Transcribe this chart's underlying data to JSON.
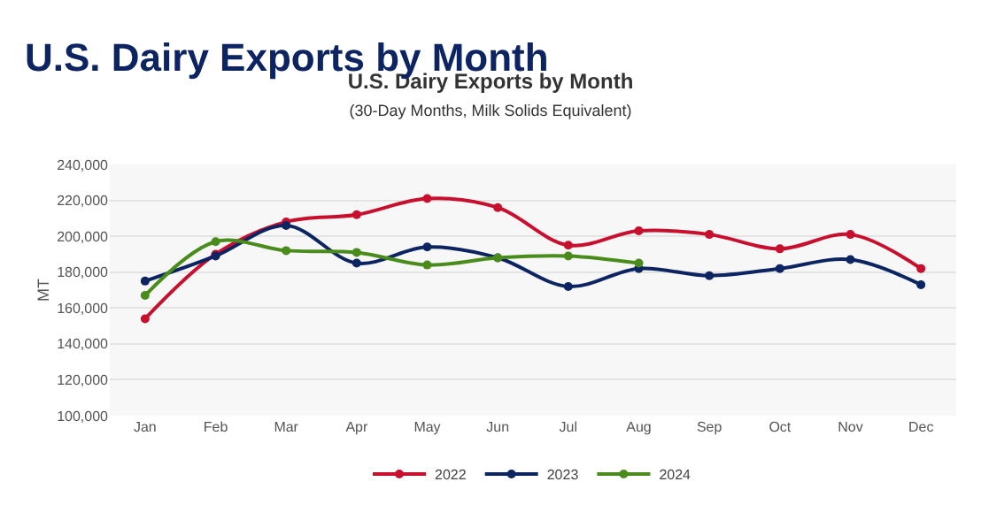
{
  "chart_data": {
    "type": "line",
    "title": "U.S. Dairy Exports by Month",
    "subtitle": "(30-Day Months, Milk Solids Equivalent)",
    "ylabel": "MT",
    "annotations": [
      "U.S. Dairy Exports by Month"
    ],
    "categories": [
      "Jan",
      "Feb",
      "Mar",
      "Apr",
      "May",
      "Jun",
      "Jul",
      "Aug",
      "Sep",
      "Oct",
      "Nov",
      "Dec"
    ],
    "series": [
      {
        "name": "2022",
        "color": "#c8102e",
        "values": [
          154000,
          190000,
          208000,
          212000,
          221000,
          216000,
          195000,
          203000,
          201000,
          193000,
          201000,
          182000
        ]
      },
      {
        "name": "2023",
        "color": "#0c2461",
        "values": [
          175000,
          189000,
          206000,
          185000,
          194000,
          188000,
          172000,
          182000,
          178000,
          182000,
          187000,
          173000
        ]
      },
      {
        "name": "2024",
        "color": "#4a8c1c",
        "values": [
          167000,
          197000,
          192000,
          191000,
          184000,
          188000,
          189000,
          185000,
          null,
          null,
          null,
          null
        ]
      }
    ],
    "ylim": [
      100000,
      240000
    ],
    "yticks": [
      {
        "value": 100000,
        "label": "100,000"
      },
      {
        "value": 120000,
        "label": "120,000"
      },
      {
        "value": 140000,
        "label": "140,000"
      },
      {
        "value": 160000,
        "label": "160,000"
      },
      {
        "value": 180000,
        "label": "180,000"
      },
      {
        "value": 200000,
        "label": "200,000"
      },
      {
        "value": 220000,
        "label": "220,000"
      },
      {
        "value": 240000,
        "label": "240,000"
      }
    ],
    "grid": "y",
    "legend": "bottom",
    "marker": "circle",
    "line_style": "solid"
  }
}
